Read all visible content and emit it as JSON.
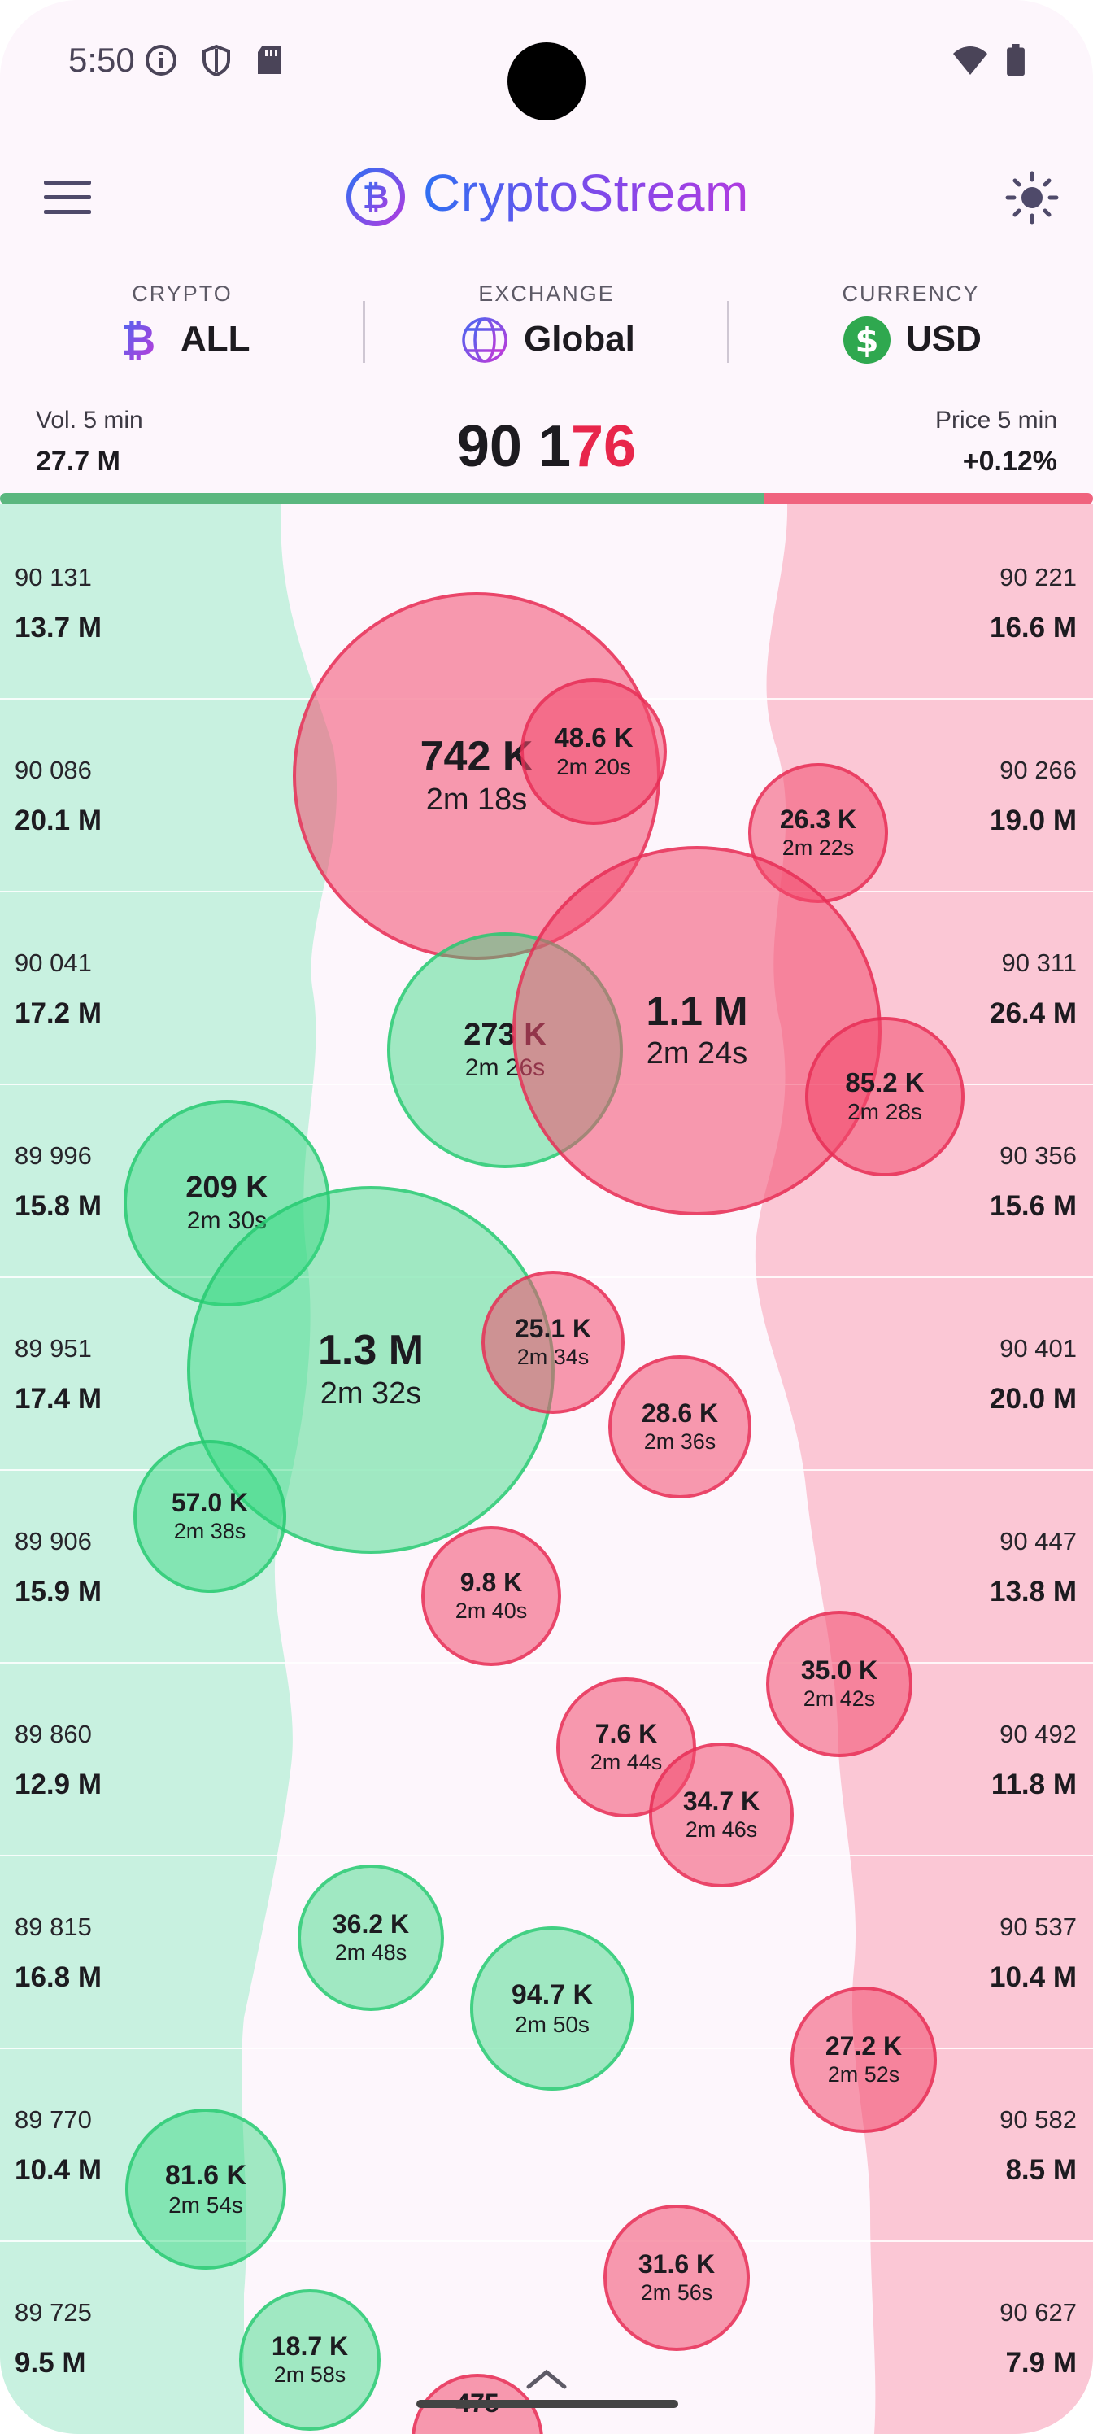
{
  "status_bar": {
    "time": "5:50"
  },
  "app": {
    "title": "CryptoStream",
    "colors": {
      "buy": "#5bb77f",
      "sell": "#f0637e",
      "accent": "#7b4bea"
    }
  },
  "selectors": [
    {
      "label": "CRYPTO",
      "value": "ALL",
      "icon": "bitcoin-icon"
    },
    {
      "label": "EXCHANGE",
      "value": "Global",
      "icon": "globe-icon"
    },
    {
      "label": "CURRENCY",
      "value": "USD",
      "icon": "dollar-icon"
    }
  ],
  "stats": {
    "vol_label": "Vol. 5 min",
    "vol_value": "27.7 M",
    "price_main": "90 1",
    "price_highlight": "76",
    "change_label": "Price 5 min",
    "change_value": "+0.12%"
  },
  "buy_levels": [
    {
      "price": "90 131",
      "volume": "13.7 M"
    },
    {
      "price": "90 086",
      "volume": "20.1 M"
    },
    {
      "price": "90 041",
      "volume": "17.2 M"
    },
    {
      "price": "89 996",
      "volume": "15.8 M"
    },
    {
      "price": "89 951",
      "volume": "17.4 M"
    },
    {
      "price": "89 906",
      "volume": "15.9 M"
    },
    {
      "price": "89 860",
      "volume": "12.9 M"
    },
    {
      "price": "89 815",
      "volume": "16.8 M"
    },
    {
      "price": "89 770",
      "volume": "10.4 M"
    },
    {
      "price": "89 725",
      "volume": "9.5 M"
    }
  ],
  "sell_levels": [
    {
      "price": "90 221",
      "volume": "16.6 M"
    },
    {
      "price": "90 266",
      "volume": "19.0 M"
    },
    {
      "price": "90 311",
      "volume": "26.4 M"
    },
    {
      "price": "90 356",
      "volume": "15.6 M"
    },
    {
      "price": "90 401",
      "volume": "20.0 M"
    },
    {
      "price": "90 447",
      "volume": "13.8 M"
    },
    {
      "price": "90 492",
      "volume": "11.8 M"
    },
    {
      "price": "90 537",
      "volume": "10.4 M"
    },
    {
      "price": "90 582",
      "volume": "8.5 M"
    },
    {
      "price": "90 627",
      "volume": "7.9 M"
    }
  ],
  "trades": [
    {
      "amount": "742 K",
      "age": "2m 18s",
      "side": "sell"
    },
    {
      "amount": "48.6 K",
      "age": "2m 20s",
      "side": "sell"
    },
    {
      "amount": "26.3 K",
      "age": "2m 22s",
      "side": "sell"
    },
    {
      "amount": "1.1 M",
      "age": "2m 24s",
      "side": "sell"
    },
    {
      "amount": "273 K",
      "age": "2m 26s",
      "side": "buy"
    },
    {
      "amount": "85.2 K",
      "age": "2m 28s",
      "side": "sell"
    },
    {
      "amount": "209 K",
      "age": "2m 30s",
      "side": "buy"
    },
    {
      "amount": "1.3 M",
      "age": "2m 32s",
      "side": "buy"
    },
    {
      "amount": "25.1 K",
      "age": "2m 34s",
      "side": "sell"
    },
    {
      "amount": "28.6 K",
      "age": "2m 36s",
      "side": "sell"
    },
    {
      "amount": "57.0 K",
      "age": "2m 38s",
      "side": "buy"
    },
    {
      "amount": "9.8 K",
      "age": "2m 40s",
      "side": "sell"
    },
    {
      "amount": "35.0 K",
      "age": "2m 42s",
      "side": "sell"
    },
    {
      "amount": "7.6 K",
      "age": "2m 44s",
      "side": "sell"
    },
    {
      "amount": "34.7 K",
      "age": "2m 46s",
      "side": "sell"
    },
    {
      "amount": "36.2 K",
      "age": "2m 48s",
      "side": "buy"
    },
    {
      "amount": "94.7 K",
      "age": "2m 50s",
      "side": "buy"
    },
    {
      "amount": "27.2 K",
      "age": "2m 52s",
      "side": "sell"
    },
    {
      "amount": "81.6 K",
      "age": "2m 54s",
      "side": "buy"
    },
    {
      "amount": "31.6 K",
      "age": "2m 56s",
      "side": "sell"
    },
    {
      "amount": "18.7 K",
      "age": "2m 58s",
      "side": "buy"
    },
    {
      "amount": "475",
      "age": "",
      "side": "sell"
    }
  ]
}
